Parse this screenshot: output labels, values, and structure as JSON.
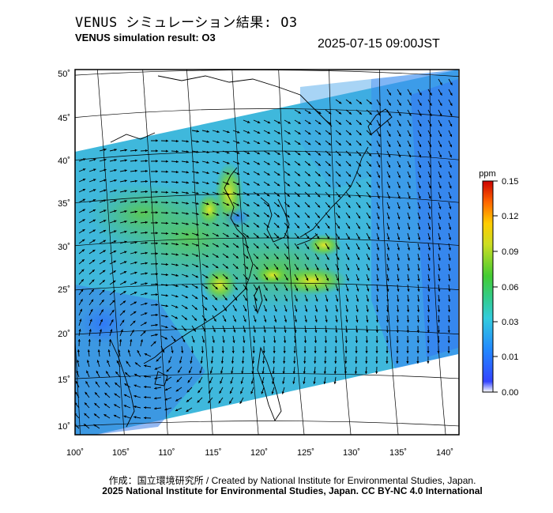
{
  "header": {
    "title_jp": "VENUS シミュレーション結果: O3",
    "title_en": "VENUS simulation result: O3",
    "timestamp": "2025-07-15 09:00JST"
  },
  "map": {
    "projection": "lambert-conformal",
    "lon_range": [
      100,
      142
    ],
    "lat_range": [
      9,
      51
    ],
    "lon_ticks": [
      "100˚",
      "105˚",
      "110˚",
      "115˚",
      "120˚",
      "125˚",
      "130˚",
      "135˚",
      "140˚"
    ],
    "lat_ticks": [
      "50˚",
      "45˚",
      "40˚",
      "35˚",
      "30˚",
      "25˚",
      "20˚",
      "15˚",
      "10˚"
    ],
    "field": "O3 concentration with wind vectors",
    "high_regions": [
      "Bohai Bay / North China Plain",
      "Yellow Sea coast",
      "Taiwan Strait east of China coast",
      "south of Japan over Pacific"
    ]
  },
  "colorbar": {
    "unit": "ppm",
    "ticks": [
      "0.15",
      "0.12",
      "0.09",
      "0.06",
      "0.03",
      "0.01",
      "0.00"
    ],
    "colors": [
      "#cc0000",
      "#ff6600",
      "#ffcc00",
      "#33cc33",
      "#33cccc",
      "#3366ff",
      "#ffffff"
    ]
  },
  "footer": {
    "credit_jp": "作成：国立環境研究所 / Created by National Institute for Environmental Studies, Japan.",
    "copyright": "2025 National Institute for Environmental Studies, Japan. CC BY-NC 4.0 International"
  }
}
